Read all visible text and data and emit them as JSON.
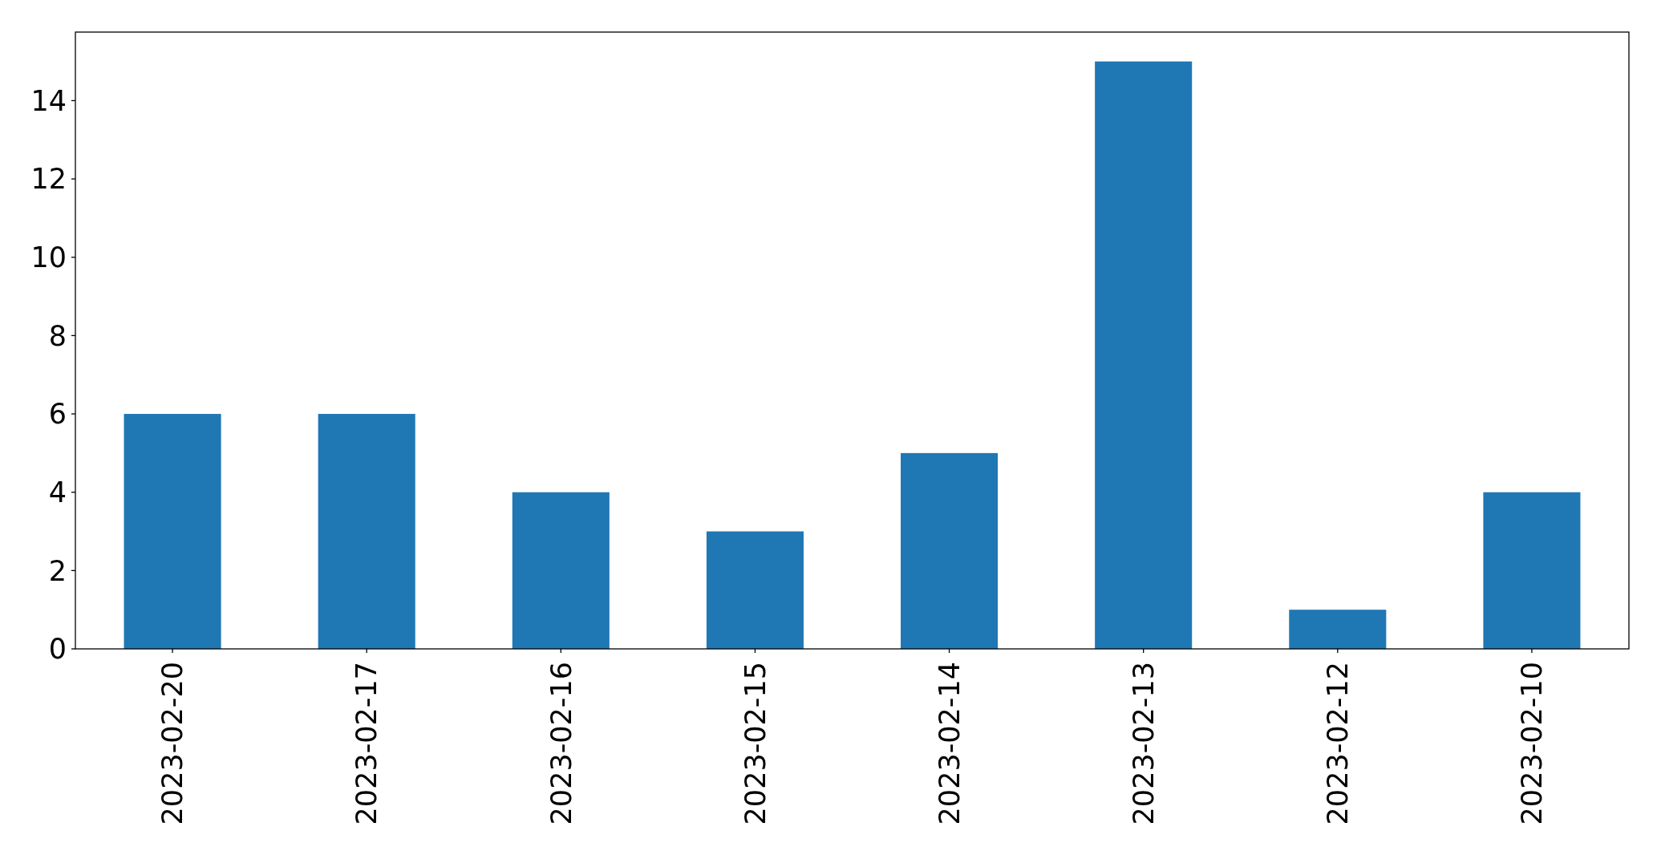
{
  "chart_data": {
    "type": "bar",
    "categories": [
      "2023-02-20",
      "2023-02-17",
      "2023-02-16",
      "2023-02-15",
      "2023-02-14",
      "2023-02-13",
      "2023-02-12",
      "2023-02-10"
    ],
    "values": [
      6,
      6,
      4,
      3,
      5,
      15,
      1,
      4
    ],
    "color": "#1f77b4",
    "ylim": [
      0,
      15.75
    ],
    "yticks": [
      0,
      2,
      4,
      6,
      8,
      10,
      12,
      14
    ]
  }
}
